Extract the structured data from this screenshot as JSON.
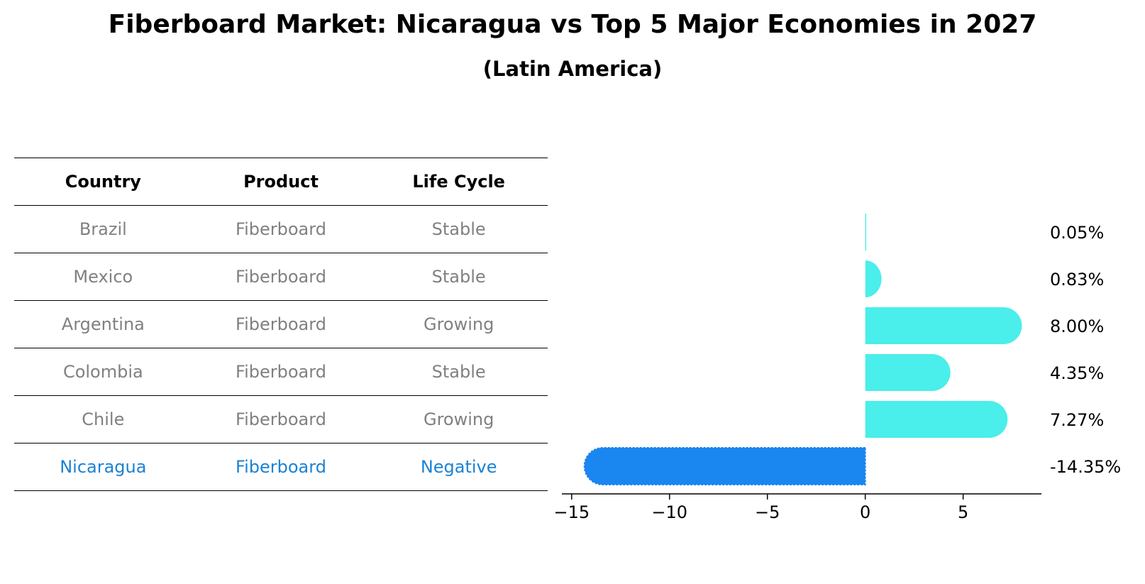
{
  "title": "Fiberboard Market: Nicaragua vs Top 5 Major Economies in 2027",
  "subtitle": "(Latin America)",
  "table": {
    "headers": [
      "Country",
      "Product",
      "Life Cycle"
    ],
    "rows": [
      {
        "country": "Brazil",
        "product": "Fiberboard",
        "life_cycle": "Stable",
        "highlight": false
      },
      {
        "country": "Mexico",
        "product": "Fiberboard",
        "life_cycle": "Stable",
        "highlight": false
      },
      {
        "country": "Argentina",
        "product": "Fiberboard",
        "life_cycle": "Growing",
        "highlight": false
      },
      {
        "country": "Colombia",
        "product": "Fiberboard",
        "life_cycle": "Stable",
        "highlight": false
      },
      {
        "country": "Chile",
        "product": "Fiberboard",
        "life_cycle": "Growing",
        "highlight": false
      },
      {
        "country": "Nicaragua",
        "product": "Fiberboard",
        "life_cycle": "Negative",
        "highlight": true
      }
    ]
  },
  "colors": {
    "positive": "#4aeeea",
    "negative": "#1a86f0",
    "muted_text": "#808080",
    "highlight_text": "#1a82d4"
  },
  "chart_data": {
    "type": "bar",
    "orientation": "horizontal",
    "categories": [
      "Brazil",
      "Mexico",
      "Argentina",
      "Colombia",
      "Chile",
      "Nicaragua"
    ],
    "values": [
      0.05,
      0.83,
      8.0,
      4.35,
      7.27,
      -14.35
    ],
    "data_labels": [
      "0.05%",
      "0.83%",
      "8.00%",
      "4.35%",
      "7.27%",
      "-14.35%"
    ],
    "xlim": [
      -15.5,
      9.0
    ],
    "xticks": [
      -15,
      -10,
      -5,
      0,
      5
    ],
    "xtick_labels": [
      "−15",
      "−10",
      "−5",
      "0",
      "5"
    ],
    "grid": false
  }
}
